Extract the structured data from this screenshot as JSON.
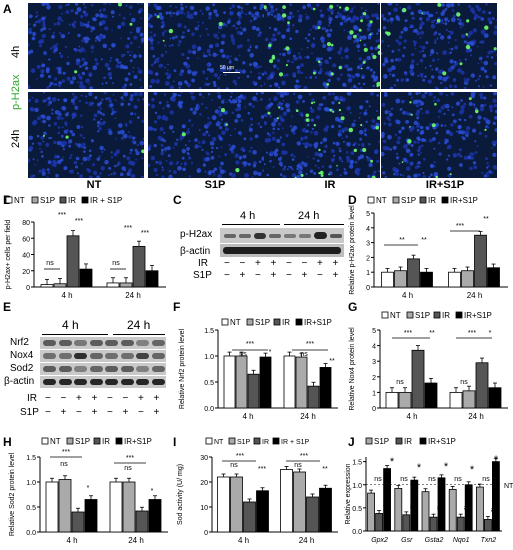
{
  "panels": {
    "A": "A",
    "B": "B",
    "C": "C",
    "D": "D",
    "E": "E",
    "F": "F",
    "G": "G",
    "H": "H",
    "I": "I",
    "J": "J"
  },
  "panelA": {
    "rows": [
      "4h",
      "24h"
    ],
    "marker": "p-H2ax",
    "cols": [
      "NT",
      "S1P",
      "IR",
      "IR+S1P"
    ],
    "scalebar": "50 μm"
  },
  "legend4": {
    "nt": "NT",
    "s1p": "S1P",
    "ir": "IR",
    "irs1p": "IR + S1P",
    "irs1p_short": "IR+S1P"
  },
  "panelC": {
    "t1": "4 h",
    "t2": "24 h",
    "protein1": "p-H2ax",
    "protein2": "β-actin",
    "ir": "IR",
    "s1p": "S1P",
    "ir_signs": [
      "−",
      "−",
      "+",
      "+",
      "−",
      "−",
      "+",
      "+"
    ],
    "s1p_signs": [
      "−",
      "+",
      "−",
      "+",
      "−",
      "+",
      "−",
      "+"
    ]
  },
  "panelE": {
    "t1": "4 h",
    "t2": "24 h",
    "proteins": [
      "Nrf2",
      "Nox4",
      "Sod2",
      "β-actin"
    ],
    "ir": "IR",
    "s1p": "S1P",
    "ir_signs": [
      "−",
      "−",
      "+",
      "+",
      "−",
      "−",
      "+",
      "+"
    ],
    "s1p_signs": [
      "−",
      "+",
      "−",
      "+",
      "−",
      "+",
      "−",
      "+"
    ]
  },
  "sig": {
    "ns": "ns",
    "s3": "***",
    "s2": "**",
    "s1": "*",
    "hash": "#"
  },
  "chart_data": [
    {
      "id": "B",
      "type": "bar",
      "categories": [
        "4 h",
        "24 h"
      ],
      "ylabel": "p-H2ax+ cells per field",
      "ylim": [
        0,
        80
      ],
      "yticks": [
        0,
        20,
        40,
        60,
        80
      ],
      "series": [
        {
          "name": "NT",
          "values": [
            3,
            5
          ]
        },
        {
          "name": "S1P",
          "values": [
            4,
            5
          ]
        },
        {
          "name": "IR",
          "values": [
            63,
            50
          ]
        },
        {
          "name": "IR + S1P",
          "values": [
            22,
            20
          ]
        }
      ]
    },
    {
      "id": "D",
      "type": "bar",
      "categories": [
        "4 h",
        "24 h"
      ],
      "ylabel": "Relative p-H2ax protein level",
      "ylim": [
        0,
        5
      ],
      "yticks": [
        0,
        1,
        2,
        3,
        4,
        5
      ],
      "series": [
        {
          "name": "NT",
          "values": [
            1.0,
            1.0
          ]
        },
        {
          "name": "S1P",
          "values": [
            1.1,
            1.1
          ]
        },
        {
          "name": "IR",
          "values": [
            1.9,
            3.5
          ]
        },
        {
          "name": "IR+S1P",
          "values": [
            1.0,
            1.3
          ]
        }
      ]
    },
    {
      "id": "F",
      "type": "bar",
      "categories": [
        "4 h",
        "24 h"
      ],
      "ylabel": "Relative Nrf2 protein level",
      "ylim": [
        0,
        1.5
      ],
      "yticks": [
        0.0,
        0.5,
        1.0,
        1.5
      ],
      "series": [
        {
          "name": "NT",
          "values": [
            1.0,
            1.0
          ]
        },
        {
          "name": "S1P",
          "values": [
            1.0,
            0.98
          ]
        },
        {
          "name": "IR",
          "values": [
            0.65,
            0.42
          ]
        },
        {
          "name": "IR+S1P",
          "values": [
            0.98,
            0.78
          ]
        }
      ]
    },
    {
      "id": "G",
      "type": "bar",
      "categories": [
        "4 h",
        "24 h"
      ],
      "ylabel": "Relative Nox4 protein level",
      "ylim": [
        0,
        5
      ],
      "yticks": [
        0,
        1,
        2,
        3,
        4,
        5
      ],
      "series": [
        {
          "name": "NT",
          "values": [
            1.0,
            1.0
          ]
        },
        {
          "name": "S1P",
          "values": [
            1.0,
            1.1
          ]
        },
        {
          "name": "IR",
          "values": [
            3.7,
            2.9
          ]
        },
        {
          "name": "IR+S1P",
          "values": [
            1.6,
            1.3
          ]
        }
      ]
    },
    {
      "id": "H",
      "type": "bar",
      "categories": [
        "4 h",
        "24 h"
      ],
      "ylabel": "Relative Sod2 protein level",
      "ylim": [
        0,
        1.5
      ],
      "yticks": [
        0.0,
        0.5,
        1.0,
        1.5
      ],
      "series": [
        {
          "name": "NT",
          "values": [
            1.0,
            1.0
          ]
        },
        {
          "name": "S1P",
          "values": [
            1.05,
            1.0
          ]
        },
        {
          "name": "IR",
          "values": [
            0.4,
            0.42
          ]
        },
        {
          "name": "IR+S1P",
          "values": [
            0.65,
            0.65
          ]
        }
      ]
    },
    {
      "id": "I",
      "type": "bar",
      "categories": [
        "4 h",
        "24 h"
      ],
      "ylabel": "Sod activity (U/ mg)",
      "ylim": [
        0,
        30
      ],
      "yticks": [
        0,
        10,
        20,
        30
      ],
      "series": [
        {
          "name": "NT",
          "values": [
            22,
            25
          ]
        },
        {
          "name": "S1P",
          "values": [
            22,
            24
          ]
        },
        {
          "name": "IR",
          "values": [
            12,
            14
          ]
        },
        {
          "name": "IR + S1P",
          "values": [
            16.5,
            17.5
          ]
        }
      ]
    },
    {
      "id": "J",
      "type": "bar",
      "categories": [
        "Gpx2",
        "Gsr",
        "Gsta2",
        "Nqo1",
        "Txn2"
      ],
      "ylabel": "Relative expression",
      "ylim": [
        0,
        1.6
      ],
      "yticks": [
        0.0,
        0.5,
        1.0,
        1.5
      ],
      "refline": "NT",
      "series": [
        {
          "name": "S1P",
          "values": [
            0.82,
            0.92,
            0.85,
            0.9,
            0.95
          ]
        },
        {
          "name": "IR",
          "values": [
            0.38,
            0.35,
            0.3,
            0.3,
            0.25
          ]
        },
        {
          "name": "IR+S1P",
          "values": [
            1.35,
            1.1,
            1.15,
            1.0,
            1.5
          ]
        }
      ]
    }
  ]
}
